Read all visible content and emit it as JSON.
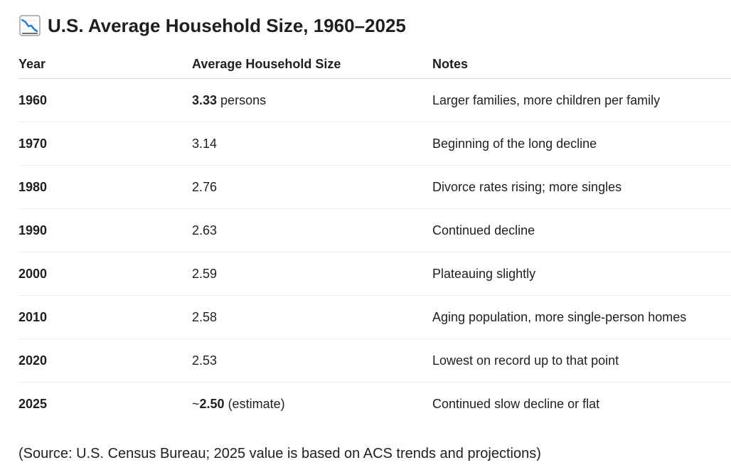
{
  "heading": {
    "icon": "chart-decreasing-icon",
    "title": "U.S. Average Household Size, 1960–2025"
  },
  "table": {
    "headers": {
      "year": "Year",
      "size": "Average Household Size",
      "notes": "Notes"
    },
    "rows": [
      {
        "year": "1960",
        "prefix": "",
        "value": "3.33",
        "suffix": " persons",
        "value_bold": true,
        "notes": "Larger families, more children per family"
      },
      {
        "year": "1970",
        "prefix": "",
        "value": "3.14",
        "suffix": "",
        "value_bold": false,
        "notes": "Beginning of the long decline"
      },
      {
        "year": "1980",
        "prefix": "",
        "value": "2.76",
        "suffix": "",
        "value_bold": false,
        "notes": "Divorce rates rising; more singles"
      },
      {
        "year": "1990",
        "prefix": "",
        "value": "2.63",
        "suffix": "",
        "value_bold": false,
        "notes": "Continued decline"
      },
      {
        "year": "2000",
        "prefix": "",
        "value": "2.59",
        "suffix": "",
        "value_bold": false,
        "notes": "Plateauing slightly"
      },
      {
        "year": "2010",
        "prefix": "",
        "value": "2.58",
        "suffix": "",
        "value_bold": false,
        "notes": "Aging population, more single-person homes"
      },
      {
        "year": "2020",
        "prefix": "",
        "value": "2.53",
        "suffix": "",
        "value_bold": false,
        "notes": "Lowest on record up to that point"
      },
      {
        "year": "2025",
        "prefix": "~",
        "value": "2.50",
        "suffix": " (estimate)",
        "value_bold": true,
        "notes": "Continued slow decline or flat"
      }
    ]
  },
  "source": "(Source: U.S. Census Bureau; 2025 value is based on ACS trends and projections)"
}
